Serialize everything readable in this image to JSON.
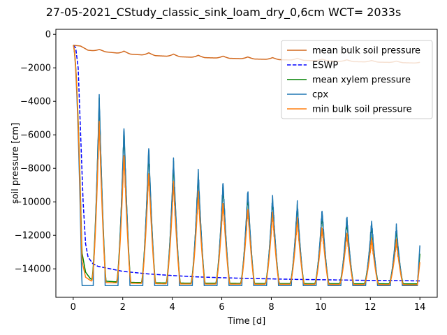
{
  "chart_data": {
    "type": "line",
    "title": "27-05-2021_CStudy_classic_sink_loam_dry_0,6cm  WCT= 2033s",
    "xlabel": "Time [d]",
    "ylabel": "soil pressure [cm]",
    "xlim": [
      -0.7,
      14.7
    ],
    "ylim": [
      -15700,
      300
    ],
    "xticks": [
      0,
      2,
      4,
      6,
      8,
      10,
      12,
      14
    ],
    "yticks": [
      0,
      -2000,
      -4000,
      -6000,
      -8000,
      -10000,
      -12000,
      -14000
    ],
    "grid": false,
    "legend_position": "top-right",
    "series": [
      {
        "name": "mean bulk soil pressure",
        "color": "#d2691e",
        "style": "solid",
        "baseline": [
          [
            0,
            -650
          ],
          [
            0.3,
            -700
          ],
          [
            0.6,
            -950
          ],
          [
            1.0,
            -1000
          ],
          [
            2,
            -1150
          ],
          [
            3,
            -1250
          ],
          [
            4,
            -1320
          ],
          [
            5,
            -1380
          ],
          [
            6,
            -1420
          ],
          [
            7,
            -1460
          ],
          [
            8,
            -1500
          ],
          [
            9,
            -1540
          ],
          [
            10,
            -1580
          ],
          [
            11,
            -1620
          ],
          [
            12,
            -1650
          ],
          [
            13,
            -1680
          ],
          [
            14,
            -1720
          ]
        ],
        "peaks": [
          -900,
          -1000,
          -1100,
          -1180,
          -1250,
          -1300,
          -1350,
          -1390,
          -1430,
          -1480,
          -1520,
          -1560,
          -1600,
          -1650
        ]
      },
      {
        "name": "ESWP",
        "color": "#0000ff",
        "style": "dashed",
        "points": [
          [
            0,
            -650
          ],
          [
            0.1,
            -800
          ],
          [
            0.2,
            -2000
          ],
          [
            0.3,
            -6000
          ],
          [
            0.4,
            -10000
          ],
          [
            0.5,
            -12500
          ],
          [
            0.6,
            -13300
          ],
          [
            0.8,
            -13700
          ],
          [
            1.0,
            -13850
          ],
          [
            1.5,
            -14000
          ],
          [
            2,
            -14150
          ],
          [
            3,
            -14300
          ],
          [
            4,
            -14400
          ],
          [
            5,
            -14480
          ],
          [
            6,
            -14530
          ],
          [
            7,
            -14570
          ],
          [
            8,
            -14600
          ],
          [
            9,
            -14630
          ],
          [
            10,
            -14650
          ],
          [
            11,
            -14670
          ],
          [
            12,
            -14690
          ],
          [
            13,
            -14700
          ],
          [
            14,
            -14720
          ]
        ]
      },
      {
        "name": "mean xylem pressure",
        "color": "#008000",
        "style": "solid",
        "baseline": [
          [
            0.35,
            -13000
          ],
          [
            0.5,
            -14200
          ],
          [
            0.7,
            -14600
          ],
          [
            0.9,
            -14700
          ],
          [
            2,
            -14800
          ],
          [
            4,
            -14850
          ],
          [
            8,
            -14880
          ],
          [
            14,
            -14900
          ]
        ],
        "peaks": [
          -3900,
          -5700,
          -6900,
          -7700,
          -8400,
          -9000,
          -9500,
          -9900,
          -10300,
          -10700,
          -11100,
          -11400,
          -11700
        ]
      },
      {
        "name": "cpx",
        "color": "#1f77b4",
        "style": "solid",
        "floor": -15000,
        "peaks": [
          -3700,
          -5500,
          -6700,
          -7500,
          -8200,
          -8800,
          -9300,
          -9700,
          -10100,
          -10500,
          -10900,
          -11200,
          -11500
        ]
      },
      {
        "name": "min bulk soil pressure",
        "color": "#ff7f0e",
        "style": "solid",
        "baseline": [
          [
            0.35,
            -13500
          ],
          [
            0.5,
            -14500
          ],
          [
            0.7,
            -14700
          ],
          [
            0.9,
            -14800
          ],
          [
            2,
            -14850
          ],
          [
            4,
            -14900
          ],
          [
            8,
            -14920
          ],
          [
            14,
            -14950
          ]
        ],
        "peaks": [
          -5300,
          -7100,
          -8200,
          -8900,
          -9500,
          -10000,
          -10400,
          -10700,
          -11100,
          -11500,
          -11900,
          -12200,
          -12400
        ]
      }
    ]
  }
}
